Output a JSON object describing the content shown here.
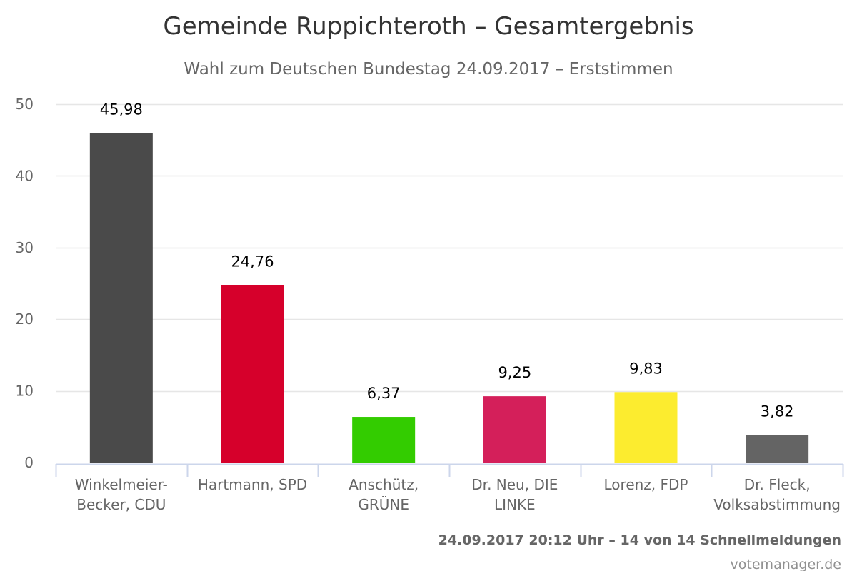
{
  "chart_data": {
    "type": "bar",
    "title": "Gemeinde Ruppichteroth – Gesamtergebnis",
    "subtitle": "Wahl zum Deutschen Bundestag 24.09.2017 – Erststimmen",
    "xlabel": "",
    "ylabel": "",
    "ylim": [
      0,
      50
    ],
    "yticks": [
      0,
      10,
      20,
      30,
      40,
      50
    ],
    "grid": true,
    "legend": "none",
    "categories": [
      [
        "Winkelmeier-",
        "Becker, CDU"
      ],
      [
        "Hartmann, SPD"
      ],
      [
        "Anschütz,",
        "GRÜNE"
      ],
      [
        "Dr. Neu, DIE",
        "LINKE"
      ],
      [
        "Lorenz, FDP"
      ],
      [
        "Dr. Fleck,",
        "Volksabstimmung"
      ]
    ],
    "values": [
      45.98,
      24.76,
      6.37,
      9.25,
      9.83,
      3.82
    ],
    "data_labels": [
      "45,98",
      "24,76",
      "6,37",
      "9,25",
      "9,83",
      "3,82"
    ],
    "colors": [
      "#4a4a4a",
      "#d6002b",
      "#33cc00",
      "#d41f5a",
      "#fcec2f",
      "#646464"
    ]
  },
  "footer": {
    "status": "24.09.2017 20:12 Uhr – 14 von 14 Schnellmeldungen",
    "credit": "votemanager.de"
  }
}
